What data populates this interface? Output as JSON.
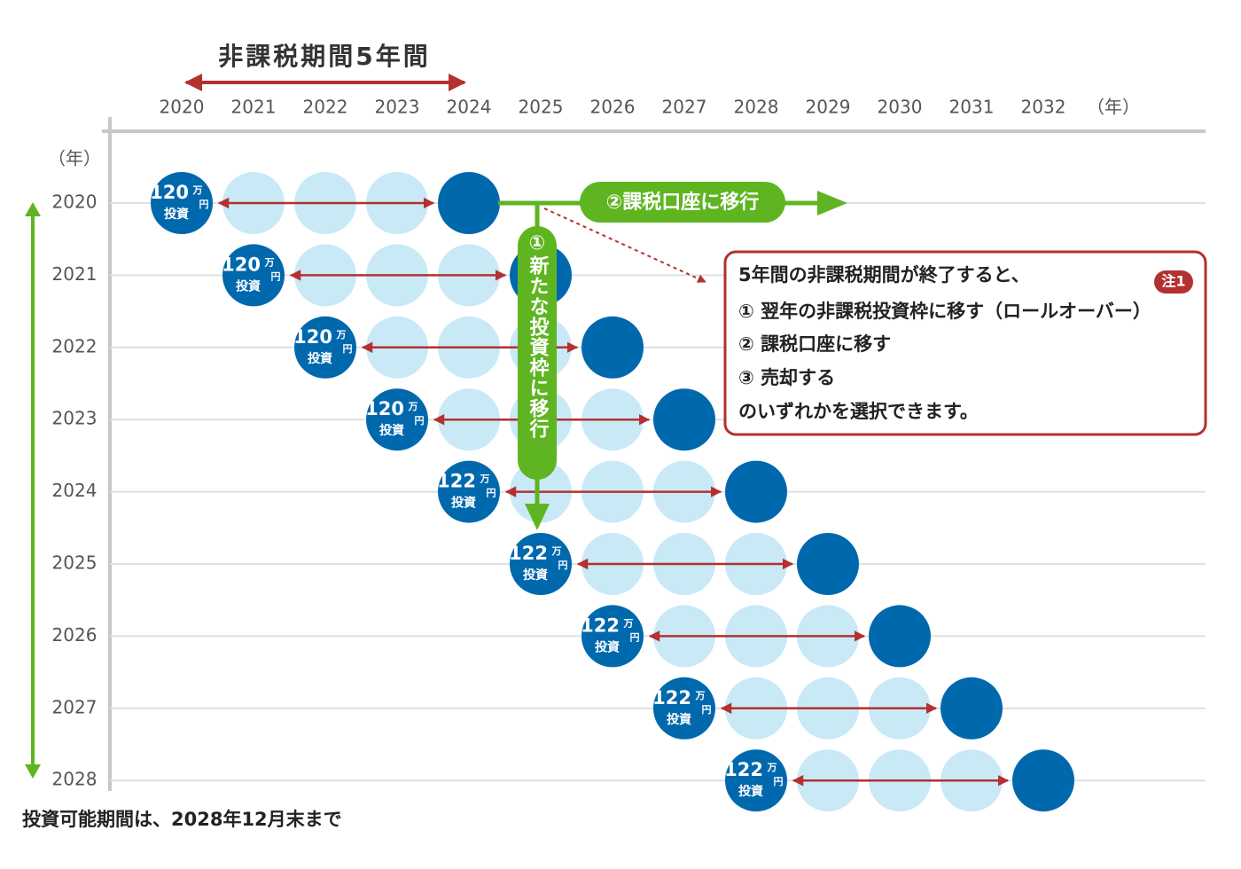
{
  "header": {
    "title": "非課税期間5年間"
  },
  "x_axis": {
    "years": [
      "2020",
      "2021",
      "2022",
      "2023",
      "2024",
      "2025",
      "2026",
      "2027",
      "2028",
      "2029",
      "2030",
      "2031",
      "2032"
    ],
    "unit": "（年）"
  },
  "y_axis": {
    "unit": "（年）",
    "years": [
      "2020",
      "2021",
      "2022",
      "2023",
      "2024",
      "2025",
      "2026",
      "2027",
      "2028"
    ]
  },
  "rows": [
    {
      "amount": "120",
      "unit_top": "万",
      "unit_bottom": "円",
      "label": "投資"
    },
    {
      "amount": "120",
      "unit_top": "万",
      "unit_bottom": "円",
      "label": "投資"
    },
    {
      "amount": "120",
      "unit_top": "万",
      "unit_bottom": "円",
      "label": "投資"
    },
    {
      "amount": "120",
      "unit_top": "万",
      "unit_bottom": "円",
      "label": "投資"
    },
    {
      "amount": "122",
      "unit_top": "万",
      "unit_bottom": "円",
      "label": "投資"
    },
    {
      "amount": "122",
      "unit_top": "万",
      "unit_bottom": "円",
      "label": "投資"
    },
    {
      "amount": "122",
      "unit_top": "万",
      "unit_bottom": "円",
      "label": "投資"
    },
    {
      "amount": "122",
      "unit_top": "万",
      "unit_bottom": "円",
      "label": "投資"
    },
    {
      "amount": "122",
      "unit_top": "万",
      "unit_bottom": "円",
      "label": "投資"
    }
  ],
  "arrows": {
    "taxable": "②課税口座に移行",
    "new_frame": "①新たな投資枠に移行"
  },
  "note": {
    "badge": "注1",
    "lines": [
      "5年間の非課税期間が終了すると、",
      "① 翌年の非課税投資枠に移す（ロールオーバー）",
      "② 課税口座に移す",
      "③ 売却する",
      "のいずれかを選択できます。"
    ]
  },
  "footer": "投資可能期間は、2028年12月末まで"
}
